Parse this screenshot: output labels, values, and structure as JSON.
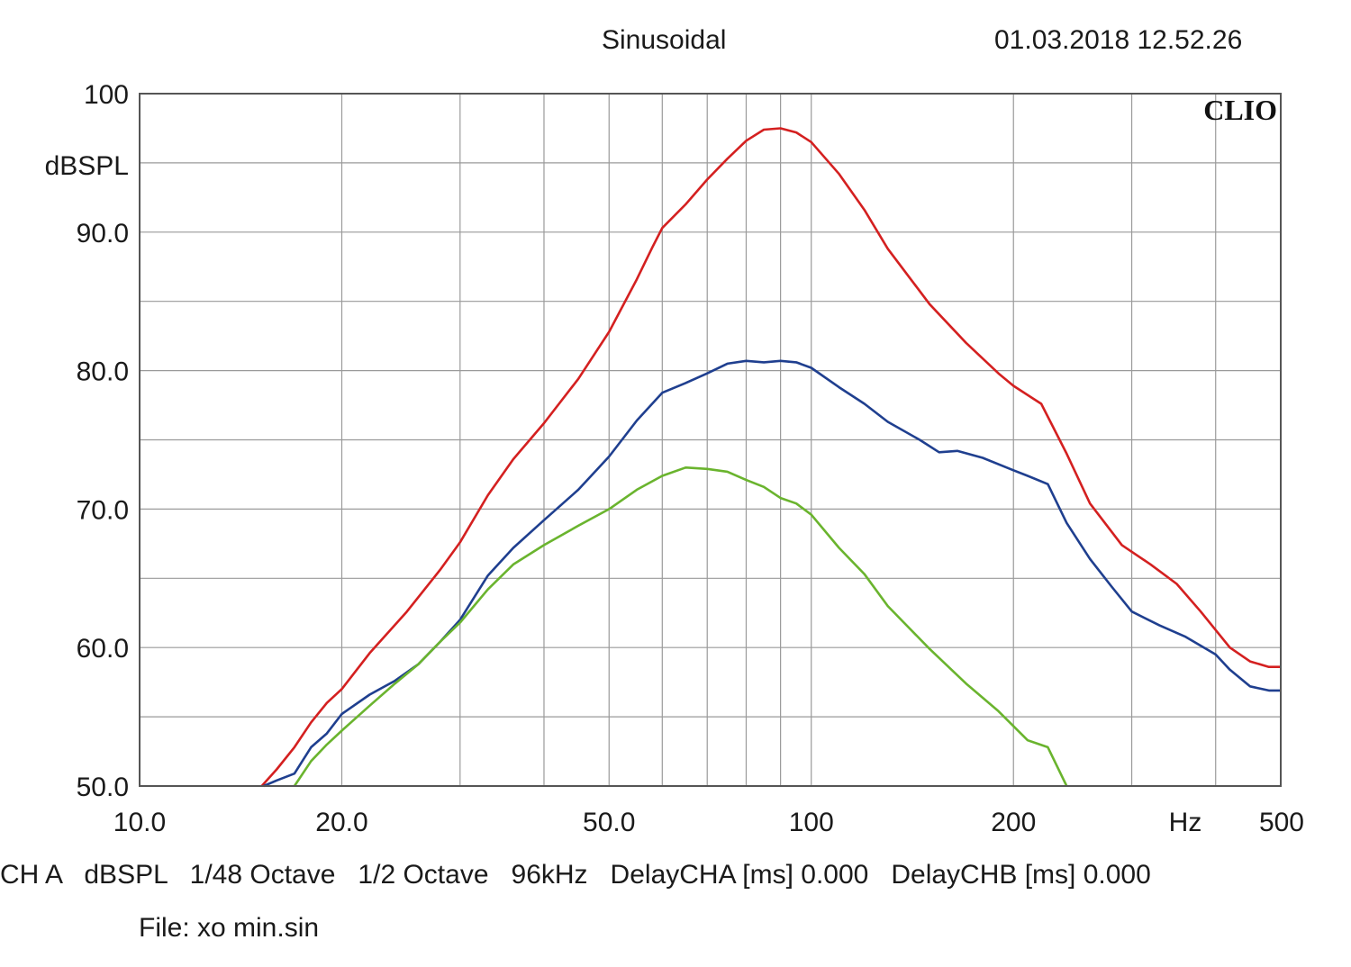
{
  "header": {
    "title": "Sinusoidal",
    "timestamp": "01.03.2018 12.52.26"
  },
  "brand": "CLIO",
  "footer": {
    "settings": "CH A   dBSPL   1/48 Octave   1/2 Octave   96kHz   DelayCHA [ms] 0.000   DelayCHB [ms] 0.000",
    "file": "File: xo min.sin"
  },
  "chart_data": {
    "type": "line",
    "title": "Sinusoidal",
    "xlabel": "Hz",
    "ylabel": "dBSPL",
    "x_scale": "log",
    "xlim": [
      10,
      500
    ],
    "ylim": [
      50,
      100
    ],
    "grid": true,
    "x_tick_labels": [
      {
        "value": 10,
        "label": "10.0"
      },
      {
        "value": 20,
        "label": "20.0"
      },
      {
        "value": 50,
        "label": "50.0"
      },
      {
        "value": 100,
        "label": "100"
      },
      {
        "value": 200,
        "label": "200"
      },
      {
        "value": 500,
        "label": "500"
      }
    ],
    "y_tick_labels": [
      {
        "value": 100,
        "label": "100"
      },
      {
        "value": 90,
        "label": "90.0"
      },
      {
        "value": 80,
        "label": "80.0"
      },
      {
        "value": 70,
        "label": "70.0"
      },
      {
        "value": 60,
        "label": "60.0"
      },
      {
        "value": 50,
        "label": "50.0"
      }
    ],
    "series": [
      {
        "color": "#d42020",
        "points": [
          [
            15.2,
            50.0
          ],
          [
            16.0,
            51.2
          ],
          [
            17.0,
            52.8
          ],
          [
            18.0,
            54.6
          ],
          [
            19.0,
            56.0
          ],
          [
            20.0,
            57.0
          ],
          [
            22.0,
            59.6
          ],
          [
            25.0,
            62.6
          ],
          [
            28.0,
            65.6
          ],
          [
            30.0,
            67.6
          ],
          [
            33.0,
            71.0
          ],
          [
            36.0,
            73.6
          ],
          [
            40.0,
            76.2
          ],
          [
            45.0,
            79.4
          ],
          [
            50.0,
            82.8
          ],
          [
            55.0,
            86.6
          ],
          [
            58.0,
            88.9
          ],
          [
            60.0,
            90.3
          ],
          [
            65.0,
            92.0
          ],
          [
            70.0,
            93.8
          ],
          [
            75.0,
            95.3
          ],
          [
            80.0,
            96.6
          ],
          [
            85.0,
            97.4
          ],
          [
            90.0,
            97.5
          ],
          [
            95.0,
            97.2
          ],
          [
            100.0,
            96.5
          ],
          [
            110.0,
            94.2
          ],
          [
            120.0,
            91.6
          ],
          [
            130.0,
            88.8
          ],
          [
            150.0,
            84.8
          ],
          [
            170.0,
            82.0
          ],
          [
            190.0,
            79.8
          ],
          [
            200.0,
            78.9
          ],
          [
            220.0,
            77.6
          ],
          [
            240.0,
            74.0
          ],
          [
            260.0,
            70.4
          ],
          [
            290.0,
            67.4
          ],
          [
            320.0,
            66.0
          ],
          [
            350.0,
            64.6
          ],
          [
            380.0,
            62.6
          ],
          [
            420.0,
            60.0
          ],
          [
            450.0,
            59.0
          ],
          [
            480.0,
            58.6
          ],
          [
            500.0,
            58.6
          ]
        ]
      },
      {
        "color": "#1f3f8f",
        "points": [
          [
            15.3,
            50.0
          ],
          [
            16.0,
            50.4
          ],
          [
            17.0,
            50.9
          ],
          [
            18.0,
            52.8
          ],
          [
            19.0,
            53.8
          ],
          [
            20.0,
            55.2
          ],
          [
            22.0,
            56.6
          ],
          [
            24.0,
            57.6
          ],
          [
            26.0,
            58.8
          ],
          [
            28.0,
            60.4
          ],
          [
            30.0,
            62.0
          ],
          [
            33.0,
            65.2
          ],
          [
            36.0,
            67.2
          ],
          [
            40.0,
            69.2
          ],
          [
            45.0,
            71.4
          ],
          [
            50.0,
            73.8
          ],
          [
            55.0,
            76.4
          ],
          [
            60.0,
            78.4
          ],
          [
            65.0,
            79.1
          ],
          [
            70.0,
            79.8
          ],
          [
            75.0,
            80.5
          ],
          [
            80.0,
            80.7
          ],
          [
            85.0,
            80.6
          ],
          [
            90.0,
            80.7
          ],
          [
            95.0,
            80.6
          ],
          [
            100.0,
            80.2
          ],
          [
            110.0,
            78.8
          ],
          [
            120.0,
            77.6
          ],
          [
            130.0,
            76.3
          ],
          [
            145.0,
            75.0
          ],
          [
            155.0,
            74.1
          ],
          [
            165.0,
            74.2
          ],
          [
            180.0,
            73.7
          ],
          [
            200.0,
            72.8
          ],
          [
            210.0,
            72.4
          ],
          [
            225.0,
            71.8
          ],
          [
            240.0,
            69.0
          ],
          [
            260.0,
            66.4
          ],
          [
            280.0,
            64.4
          ],
          [
            300.0,
            62.6
          ],
          [
            330.0,
            61.6
          ],
          [
            360.0,
            60.8
          ],
          [
            400.0,
            59.5
          ],
          [
            420.0,
            58.4
          ],
          [
            450.0,
            57.2
          ],
          [
            480.0,
            56.9
          ],
          [
            500.0,
            56.9
          ]
        ]
      },
      {
        "color": "#6ab42e",
        "points": [
          [
            17.0,
            50.0
          ],
          [
            18.0,
            51.8
          ],
          [
            19.0,
            53.0
          ],
          [
            20.0,
            54.0
          ],
          [
            22.0,
            55.8
          ],
          [
            24.0,
            57.4
          ],
          [
            26.0,
            58.8
          ],
          [
            28.0,
            60.4
          ],
          [
            30.0,
            61.8
          ],
          [
            33.0,
            64.2
          ],
          [
            36.0,
            66.0
          ],
          [
            40.0,
            67.4
          ],
          [
            45.0,
            68.8
          ],
          [
            50.0,
            70.0
          ],
          [
            55.0,
            71.4
          ],
          [
            60.0,
            72.4
          ],
          [
            65.0,
            73.0
          ],
          [
            70.0,
            72.9
          ],
          [
            75.0,
            72.7
          ],
          [
            80.0,
            72.1
          ],
          [
            85.0,
            71.6
          ],
          [
            90.0,
            70.8
          ],
          [
            95.0,
            70.4
          ],
          [
            100.0,
            69.6
          ],
          [
            110.0,
            67.2
          ],
          [
            120.0,
            65.3
          ],
          [
            130.0,
            63.0
          ],
          [
            150.0,
            59.9
          ],
          [
            170.0,
            57.4
          ],
          [
            190.0,
            55.4
          ],
          [
            210.0,
            53.3
          ],
          [
            225.0,
            52.8
          ],
          [
            240.0,
            50.0
          ]
        ]
      }
    ]
  }
}
